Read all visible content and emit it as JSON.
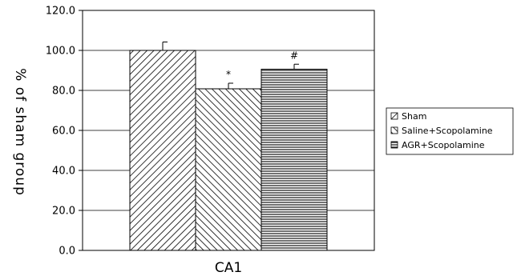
{
  "chart_data": {
    "type": "bar",
    "categories": [
      "CA1"
    ],
    "series": [
      {
        "name": "Sham",
        "values": [
          100.0
        ],
        "error": [
          4.2
        ],
        "pattern": "diag-right",
        "annotation": ""
      },
      {
        "name": "Saline+Scopolamine",
        "values": [
          80.8
        ],
        "error": [
          2.8
        ],
        "pattern": "diag-left",
        "annotation": "*"
      },
      {
        "name": "AGR+Scopolamine",
        "values": [
          90.6
        ],
        "error": [
          2.5
        ],
        "pattern": "horizontal",
        "annotation": "#"
      }
    ],
    "yticks": [
      "0.0",
      "20.0",
      "40.0",
      "60.0",
      "80.0",
      "100.0",
      "120.0"
    ],
    "ylabel": "% of sham group",
    "xlabel": "",
    "title": "",
    "ylim": [
      0,
      120
    ],
    "grid": "horizontal",
    "legend_position": "right",
    "colors": {
      "bar_fill": "#ffffff",
      "pattern_stroke": "#000000",
      "grid": "#000000",
      "axis": "#000000"
    }
  }
}
